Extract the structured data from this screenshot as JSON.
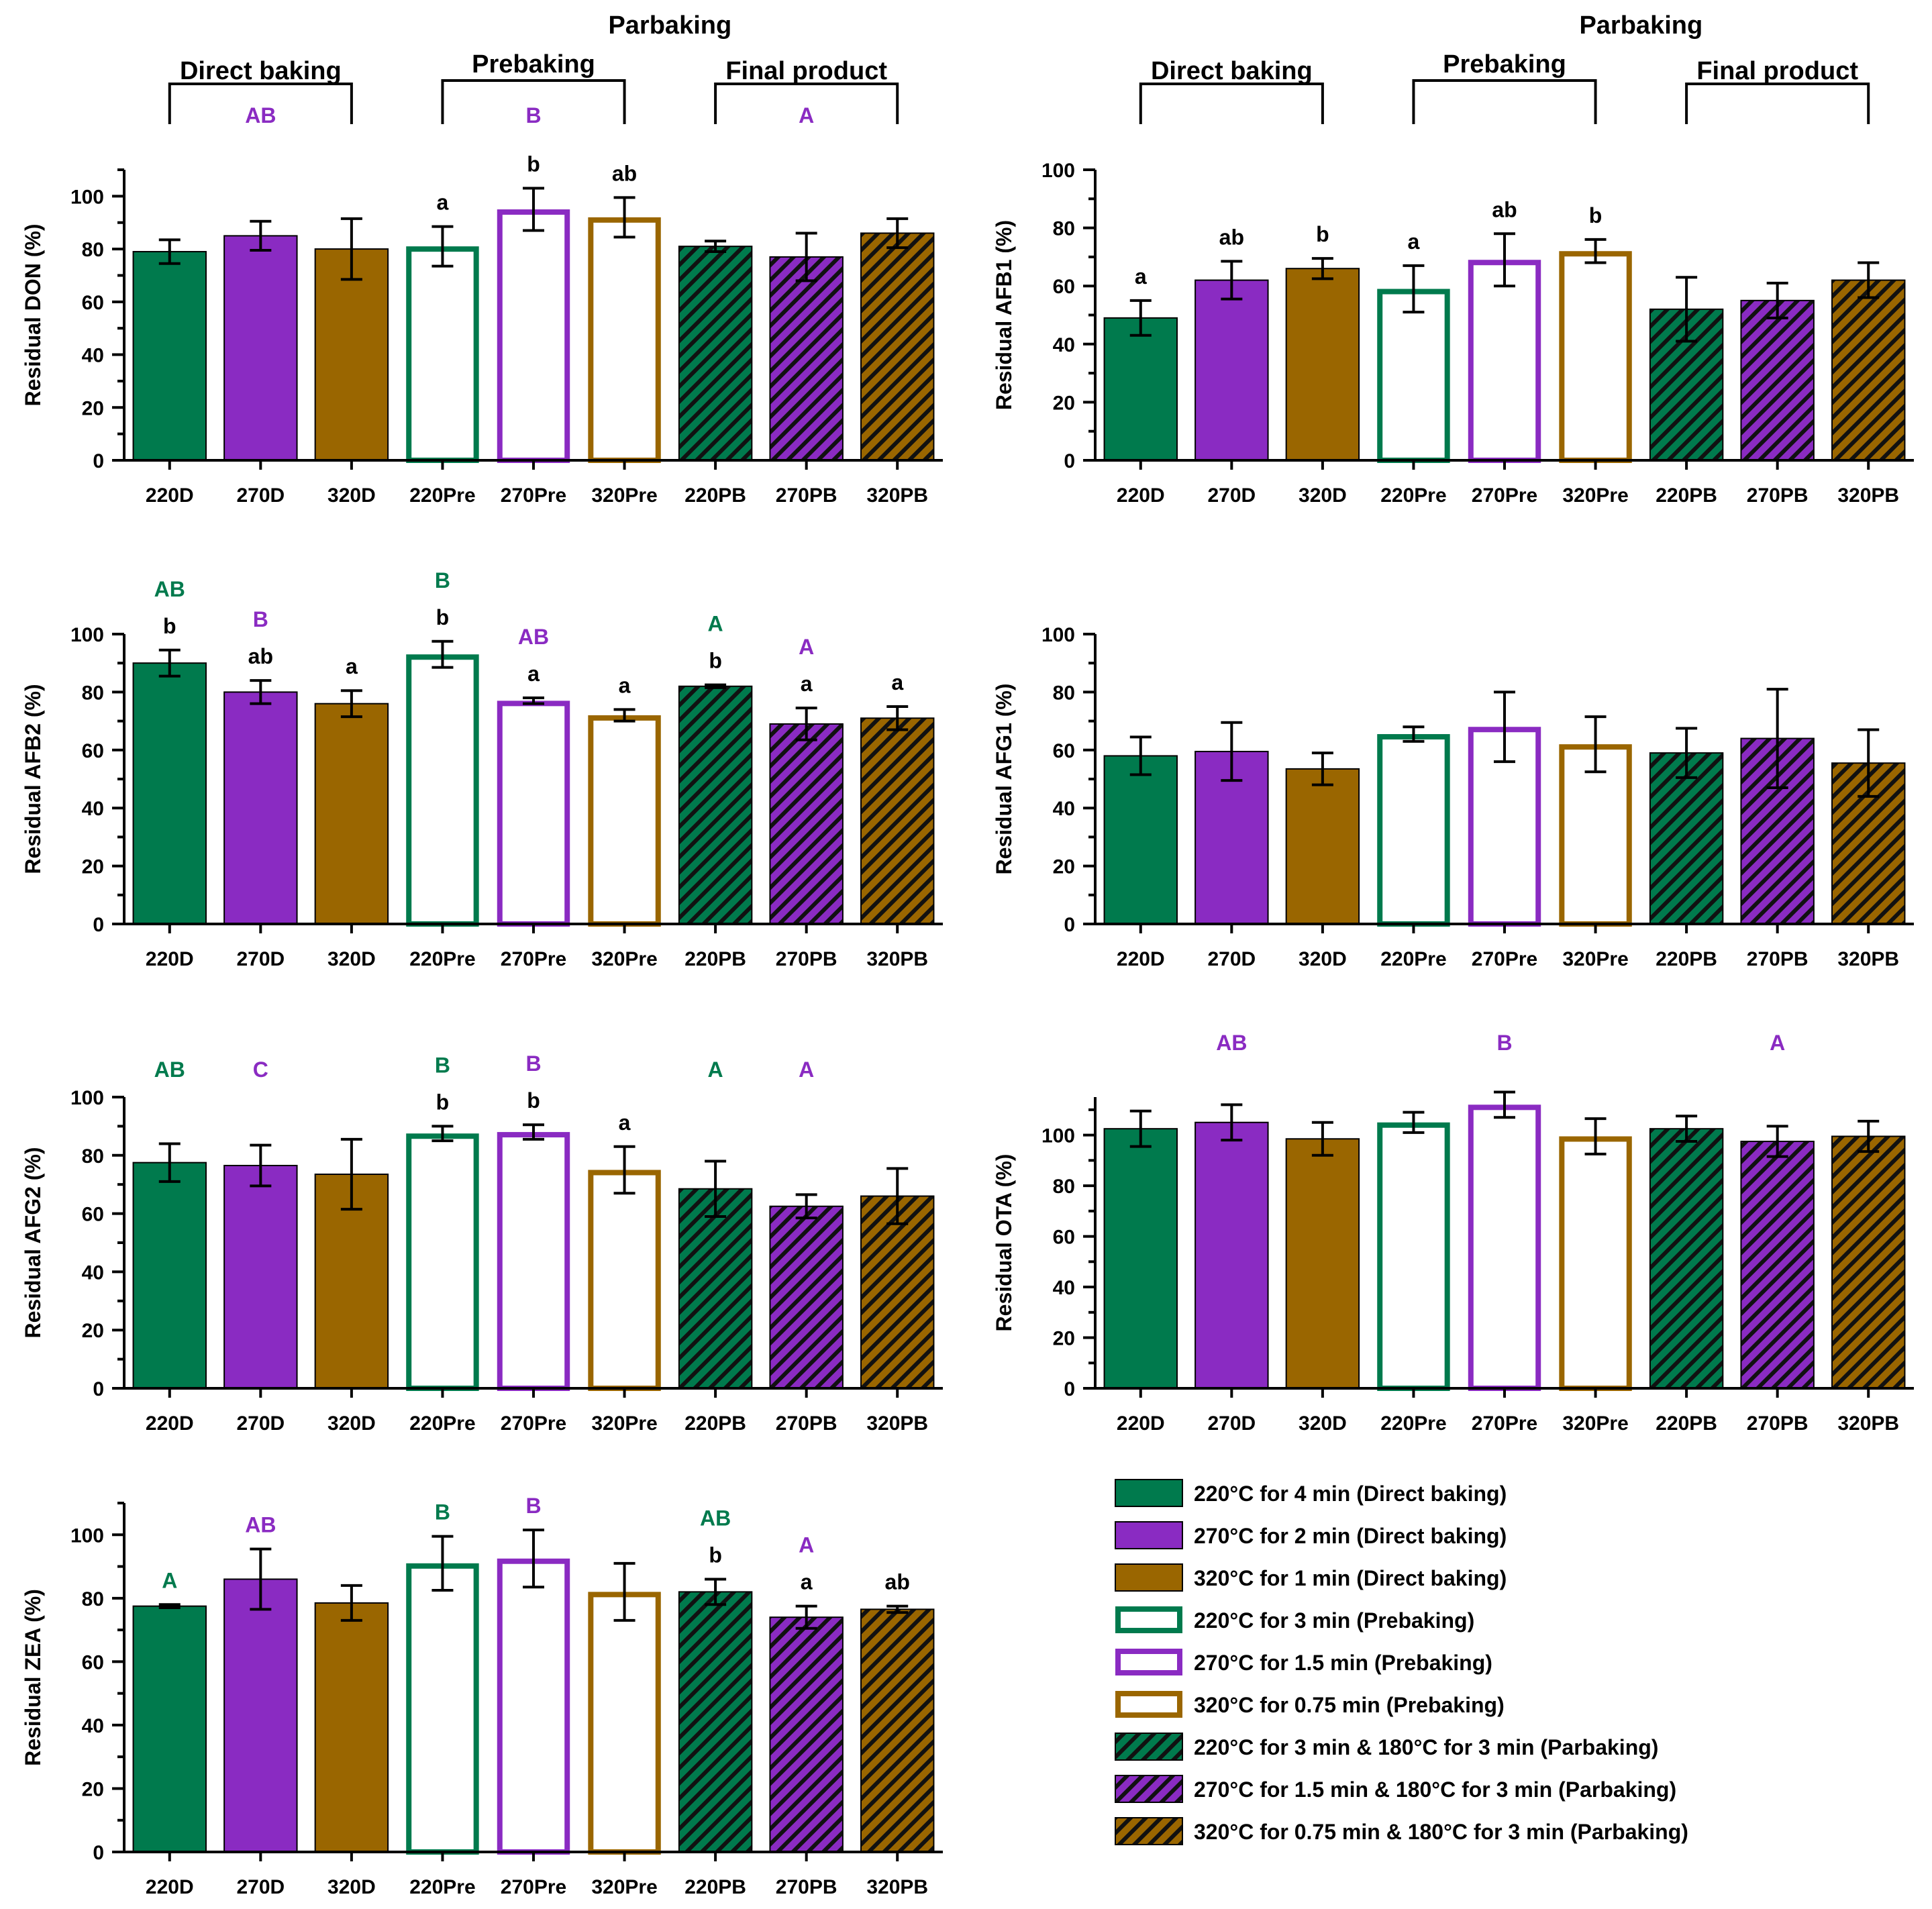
{
  "chart_data": {
    "type": "bar",
    "categories": [
      "220D",
      "270D",
      "320D",
      "220Pre",
      "270Pre",
      "320Pre",
      "220PB",
      "270PB",
      "320PB"
    ],
    "panels": [
      {
        "id": "don",
        "ylabel": "Residual DON (%)",
        "ylim": [
          0,
          110
        ],
        "yticks": [
          0,
          20,
          40,
          60,
          80,
          100
        ],
        "values": [
          79,
          85,
          80,
          81,
          95,
          92,
          81,
          77,
          86
        ],
        "errors": [
          4.5,
          5.5,
          11.5,
          7.5,
          8,
          7.5,
          2,
          9,
          5.5
        ],
        "letters": [
          "",
          "",
          "",
          "a",
          "b",
          "ab",
          "",
          "",
          ""
        ],
        "upper_letters": [
          {
            "text": "AB",
            "bar": 1,
            "color": "purple"
          },
          {
            "text": "B",
            "bar": 4,
            "color": "purple"
          },
          {
            "text": "A",
            "bar": 7,
            "color": "purple"
          }
        ],
        "header": {
          "title": "Parbaking",
          "groups": [
            "Direct baking",
            "Prebaking",
            "Final product"
          ]
        }
      },
      {
        "id": "afb1",
        "ylabel": "Residual AFB1 (%)",
        "ylim": [
          0,
          100
        ],
        "yticks": [
          0,
          20,
          40,
          60,
          80,
          100
        ],
        "values": [
          49,
          62,
          66,
          59,
          69,
          72,
          52,
          55,
          62
        ],
        "errors": [
          6,
          6.5,
          3.5,
          8,
          9,
          4,
          11,
          6,
          6
        ],
        "letters": [
          "a",
          "ab",
          "b",
          "a",
          "ab",
          "b",
          "",
          "",
          ""
        ],
        "upper_letters": [],
        "header": {
          "title": "Parbaking",
          "groups": [
            "Direct baking",
            "Prebaking",
            "Final product"
          ]
        }
      },
      {
        "id": "afb2",
        "ylabel": "Residual AFB2 (%)",
        "ylim": [
          0,
          100
        ],
        "yticks": [
          0,
          20,
          40,
          60,
          80,
          100
        ],
        "values": [
          90,
          80,
          76,
          93,
          77,
          72,
          82,
          69,
          71
        ],
        "errors": [
          4.5,
          4,
          4.5,
          4.5,
          1,
          2,
          0.5,
          5.5,
          4
        ],
        "letters": [
          "b",
          "ab",
          "a",
          "b",
          "a",
          "a",
          "b",
          "a",
          "a"
        ],
        "upper_letters": [
          {
            "text": "AB",
            "bar": 0,
            "color": "green"
          },
          {
            "text": "B",
            "bar": 1,
            "color": "purple"
          },
          {
            "text": "B",
            "bar": 3,
            "color": "green"
          },
          {
            "text": "AB",
            "bar": 4,
            "color": "purple"
          },
          {
            "text": "A",
            "bar": 6,
            "color": "green"
          },
          {
            "text": "A",
            "bar": 7,
            "color": "purple"
          }
        ]
      },
      {
        "id": "afg1",
        "ylabel": "Residual AFG1 (%)",
        "ylim": [
          0,
          100
        ],
        "yticks": [
          0,
          20,
          40,
          60,
          80,
          100
        ],
        "values": [
          58,
          59.5,
          53.5,
          65.5,
          68,
          62,
          59,
          64,
          55.5
        ],
        "errors": [
          6.5,
          10,
          5.5,
          2.5,
          12,
          9.5,
          8.5,
          17,
          11.5
        ],
        "letters": [
          "",
          "",
          "",
          "",
          "",
          "",
          "",
          "",
          ""
        ],
        "upper_letters": []
      },
      {
        "id": "afg2",
        "ylabel": "Residual AFG2 (%)",
        "ylim": [
          0,
          100
        ],
        "yticks": [
          0,
          20,
          40,
          60,
          80,
          100
        ],
        "values": [
          77.5,
          76.5,
          73.5,
          87.5,
          88,
          75,
          68.5,
          62.5,
          66
        ],
        "errors": [
          6.5,
          7,
          12,
          2.5,
          2.5,
          8,
          9.5,
          4,
          9.5
        ],
        "letters": [
          "",
          "",
          "",
          "b",
          "b",
          "a",
          "",
          "",
          ""
        ],
        "upper_letters": [
          {
            "text": "AB",
            "bar": 0,
            "color": "green"
          },
          {
            "text": "C",
            "bar": 1,
            "color": "purple"
          },
          {
            "text": "B",
            "bar": 3,
            "color": "green"
          },
          {
            "text": "B",
            "bar": 4,
            "color": "purple"
          },
          {
            "text": "A",
            "bar": 6,
            "color": "green"
          },
          {
            "text": "A",
            "bar": 7,
            "color": "purple"
          }
        ]
      },
      {
        "id": "ota",
        "ylabel": "Residual OTA (%)",
        "ylim": [
          0,
          115
        ],
        "yticks": [
          0,
          20,
          40,
          60,
          80,
          100
        ],
        "values": [
          102.5,
          105,
          98.5,
          105,
          112,
          99.5,
          102.5,
          97.5,
          99.5
        ],
        "errors": [
          7,
          7,
          6.5,
          4,
          5,
          7,
          5,
          6,
          6
        ],
        "letters": [
          "",
          "",
          "",
          "",
          "",
          "",
          "",
          "",
          ""
        ],
        "upper_letters": [
          {
            "text": "AB",
            "bar": 1,
            "color": "purple"
          },
          {
            "text": "B",
            "bar": 4,
            "color": "purple"
          },
          {
            "text": "A",
            "bar": 7,
            "color": "purple"
          }
        ]
      },
      {
        "id": "zea",
        "ylabel": "Residual ZEA (%)",
        "ylim": [
          0,
          110
        ],
        "yticks": [
          0,
          20,
          40,
          60,
          80,
          100
        ],
        "values": [
          77.5,
          86,
          78.5,
          91,
          92.5,
          82,
          82,
          74,
          76.5
        ],
        "errors": [
          0.5,
          9.5,
          5.5,
          8.5,
          9,
          9,
          4,
          3.5,
          1
        ],
        "letters": [
          "",
          "",
          "",
          "",
          "",
          "",
          "b",
          "a",
          "ab"
        ],
        "upper_letters": [
          {
            "text": "A",
            "bar": 0,
            "color": "green"
          },
          {
            "text": "AB",
            "bar": 1,
            "color": "purple"
          },
          {
            "text": "B",
            "bar": 3,
            "color": "green"
          },
          {
            "text": "B",
            "bar": 4,
            "color": "purple"
          },
          {
            "text": "AB",
            "bar": 6,
            "color": "green"
          },
          {
            "text": "A",
            "bar": 7,
            "color": "purple"
          }
        ]
      }
    ],
    "legend": [
      {
        "label": "220°C for 4 min (Direct baking)",
        "color": "green",
        "style": "solid"
      },
      {
        "label": "270°C for 2 min (Direct baking)",
        "color": "purple",
        "style": "solid"
      },
      {
        "label": "320°C for 1 min (Direct baking)",
        "color": "brown",
        "style": "solid"
      },
      {
        "label": "220°C for 3 min (Prebaking)",
        "color": "green",
        "style": "outline"
      },
      {
        "label": "270°C for 1.5 min (Prebaking)",
        "color": "purple",
        "style": "outline"
      },
      {
        "label": "320°C for 0.75 min (Prebaking)",
        "color": "brown",
        "style": "outline"
      },
      {
        "label": "220°C for 3 min & 180°C for 3 min (Parbaking)",
        "color": "green",
        "style": "hatch"
      },
      {
        "label": "270°C for 1.5 min & 180°C for 3 min (Parbaking)",
        "color": "purple",
        "style": "hatch"
      },
      {
        "label": "320°C for 0.75 min & 180°C for 3 min (Parbaking)",
        "color": "brown",
        "style": "hatch"
      }
    ]
  },
  "colors": {
    "green": "#007A4D",
    "purple": "#8A2BC2",
    "brown": "#9A6600",
    "axis": "#000000",
    "background": "#FFFFFF"
  }
}
